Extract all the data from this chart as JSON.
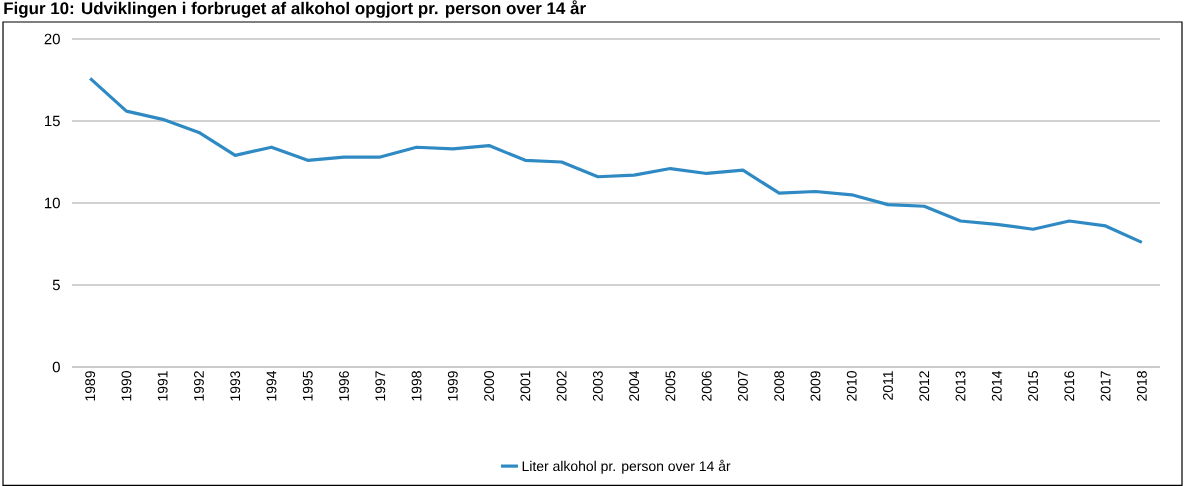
{
  "chart_data": {
    "type": "line",
    "title": "Figur 10: Udviklingen i forbruget af alkohol opgjort pr. person over 14 år",
    "categories": [
      "1989",
      "1990",
      "1991",
      "1992",
      "1993",
      "1994",
      "1995",
      "1996",
      "1997",
      "1998",
      "1999",
      "2000",
      "2001",
      "2002",
      "2003",
      "2004",
      "2005",
      "2006",
      "2007",
      "2008",
      "2009",
      "2010",
      "2011",
      "2012",
      "2013",
      "2014",
      "2015",
      "2016",
      "2017",
      "2018"
    ],
    "series": [
      {
        "name": "Liter alkohol pr. person over 14 år",
        "color": "#2f8ac4",
        "values": [
          17.6,
          15.6,
          15.1,
          14.3,
          12.9,
          13.4,
          12.6,
          12.8,
          12.8,
          13.4,
          13.3,
          13.5,
          12.6,
          12.5,
          11.6,
          11.7,
          12.1,
          11.8,
          12.0,
          10.6,
          10.7,
          10.5,
          9.9,
          9.8,
          8.9,
          8.7,
          8.4,
          8.9,
          8.6,
          7.6
        ]
      }
    ],
    "ylim": [
      0,
      20
    ],
    "yticks": [
      0,
      5,
      10,
      15,
      20
    ],
    "grid": "y",
    "legend": "bottom",
    "marker": "none",
    "line_style": "solid"
  }
}
